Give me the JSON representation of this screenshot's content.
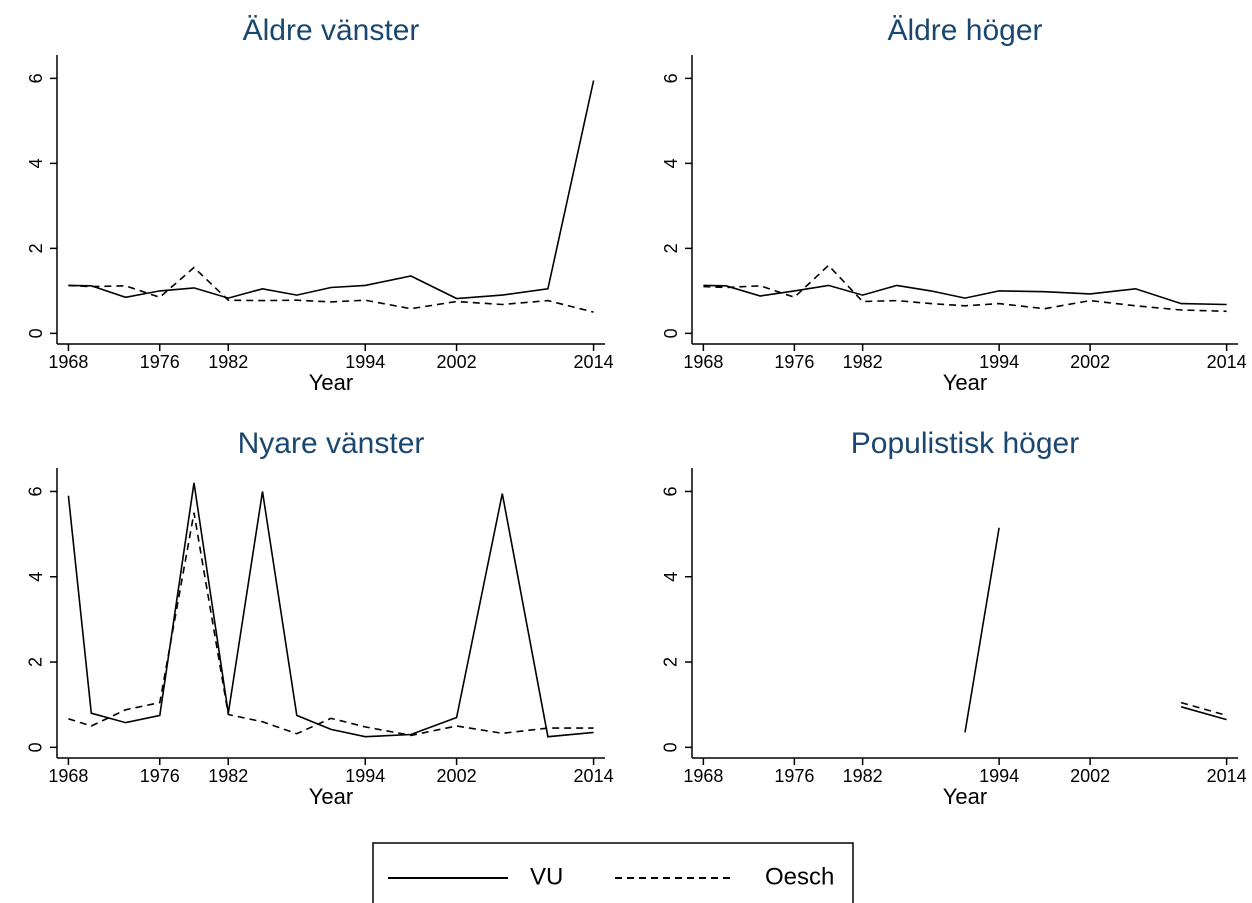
{
  "chart_data": [
    {
      "type": "line",
      "title": "Äldre vänster",
      "x_label": "Year",
      "x": [
        1968,
        1970,
        1973,
        1976,
        1979,
        1982,
        1985,
        1988,
        1991,
        1994,
        1998,
        2002,
        2006,
        2010,
        2014
      ],
      "series": [
        {
          "name": "VU",
          "style": "solid",
          "values": [
            1.13,
            1.12,
            0.85,
            1.0,
            1.07,
            0.83,
            1.05,
            0.9,
            1.08,
            1.13,
            1.35,
            0.82,
            0.9,
            1.05,
            5.95
          ]
        },
        {
          "name": "Oesch",
          "style": "dashed",
          "values": [
            1.13,
            1.1,
            1.12,
            0.85,
            1.55,
            0.78,
            0.77,
            0.78,
            0.74,
            0.78,
            0.58,
            0.75,
            0.68,
            0.77,
            0.5
          ]
        }
      ],
      "xlim": [
        1967,
        2015
      ],
      "ylim": [
        -0.25,
        6.55
      ],
      "xticks": [
        1968,
        1976,
        1982,
        1994,
        2002,
        2014
      ],
      "yticks": [
        0,
        2,
        4,
        6
      ]
    },
    {
      "type": "line",
      "title": "Äldre höger",
      "x_label": "Year",
      "x": [
        1968,
        1970,
        1973,
        1976,
        1979,
        1982,
        1985,
        1988,
        1991,
        1994,
        1998,
        2002,
        2006,
        2010,
        2014
      ],
      "series": [
        {
          "style": "solid",
          "values": [
            1.13,
            1.12,
            0.88,
            1.0,
            1.13,
            0.9,
            1.13,
            1.0,
            0.83,
            1.0,
            0.98,
            0.93,
            1.05,
            0.7,
            0.68
          ]
        },
        {
          "style": "dashed",
          "values": [
            1.1,
            1.08,
            1.12,
            0.85,
            1.6,
            0.75,
            0.77,
            0.7,
            0.65,
            0.7,
            0.58,
            0.77,
            0.65,
            0.55,
            0.52
          ]
        }
      ],
      "xlim": [
        1967,
        2015
      ],
      "ylim": [
        -0.25,
        6.55
      ],
      "xticks": [
        1968,
        1976,
        1982,
        1994,
        2002,
        2014
      ],
      "yticks": [
        0,
        2,
        4,
        6
      ]
    },
    {
      "type": "line",
      "title": "Nyare vänster",
      "x_label": "Year",
      "x": [
        1968,
        1970,
        1973,
        1976,
        1979,
        1982,
        1985,
        1988,
        1991,
        1994,
        1998,
        2002,
        2006,
        2010,
        2014
      ],
      "series": [
        {
          "style": "solid",
          "values": [
            5.9,
            0.8,
            0.58,
            0.75,
            6.2,
            0.8,
            6.0,
            0.75,
            0.42,
            0.25,
            0.3,
            0.7,
            5.95,
            0.25,
            0.35
          ]
        },
        {
          "style": "dashed",
          "values": [
            0.67,
            0.5,
            0.88,
            1.05,
            5.5,
            0.77,
            0.6,
            0.32,
            0.68,
            0.48,
            0.28,
            0.5,
            0.33,
            0.45,
            0.45
          ]
        }
      ],
      "xlim": [
        1967,
        2015
      ],
      "ylim": [
        -0.25,
        6.55
      ],
      "xticks": [
        1968,
        1976,
        1982,
        1994,
        2002,
        2014
      ],
      "yticks": [
        0,
        2,
        4,
        6
      ]
    },
    {
      "type": "line",
      "title": "Populistisk höger",
      "x_label": "Year",
      "x": [
        1968,
        1970,
        1973,
        1976,
        1979,
        1982,
        1985,
        1988,
        1991,
        1994,
        1998,
        2002,
        2006,
        2010,
        2014
      ],
      "series": [
        {
          "style": "solid",
          "values": [
            null,
            null,
            null,
            null,
            null,
            null,
            null,
            null,
            0.35,
            5.15,
            null,
            null,
            null,
            0.95,
            0.65
          ]
        },
        {
          "style": "dashed",
          "values": [
            null,
            null,
            null,
            null,
            null,
            null,
            null,
            null,
            null,
            null,
            null,
            null,
            null,
            1.05,
            0.75
          ]
        }
      ],
      "xlim": [
        1967,
        2015
      ],
      "ylim": [
        -0.25,
        6.55
      ],
      "xticks": [
        1968,
        1976,
        1982,
        1994,
        2002,
        2014
      ],
      "yticks": [
        0,
        2,
        4,
        6
      ]
    }
  ]
}
